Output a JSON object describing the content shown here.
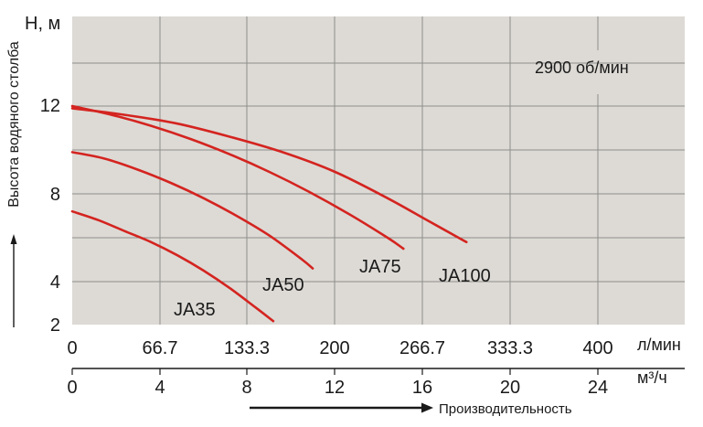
{
  "chart_data": {
    "type": "line",
    "ylabel": "Высота водяного столба",
    "y_axis_title": "H, м",
    "annotation": "2900 об/мин",
    "xlabel": "Производительность",
    "primary_x_unit": "л/мин",
    "secondary_x_unit": "м³/ч",
    "primary_x_ticks": [
      0,
      66.7,
      133.3,
      200,
      266.7,
      333.3,
      400
    ],
    "primary_x_tick_labels": [
      "0",
      "66.7",
      "133.3",
      "200",
      "266.7",
      "333.3",
      "400"
    ],
    "secondary_x_ticks": [
      0,
      4,
      8,
      12,
      16,
      20,
      24
    ],
    "secondary_x_tick_labels": [
      "0",
      "4",
      "8",
      "12",
      "16",
      "20",
      "24"
    ],
    "y_ticks": [
      2,
      4,
      8,
      12
    ],
    "y_tick_labels": [
      "2",
      "4",
      "8",
      "12"
    ],
    "xlim": [
      0,
      480
    ],
    "ylim": [
      2,
      16
    ],
    "grid": true,
    "line_color": "#d42420",
    "background_color": "#dddad5",
    "series": [
      {
        "name": "JA35",
        "x": [
          0,
          20,
          40,
          60,
          80,
          100,
          120,
          140,
          153
        ],
        "y": [
          7.2,
          6.8,
          6.3,
          5.8,
          5.2,
          4.5,
          3.7,
          2.8,
          2.2
        ]
      },
      {
        "name": "JA50",
        "x": [
          0,
          25,
          50,
          75,
          100,
          125,
          150,
          175,
          183
        ],
        "y": [
          9.9,
          9.6,
          9.1,
          8.5,
          7.8,
          7.0,
          6.1,
          5.0,
          4.6
        ]
      },
      {
        "name": "JA75",
        "x": [
          0,
          30,
          60,
          90,
          120,
          150,
          180,
          210,
          240,
          252
        ],
        "y": [
          12.0,
          11.6,
          11.1,
          10.5,
          9.8,
          9.0,
          8.1,
          7.1,
          6.0,
          5.5
        ]
      },
      {
        "name": "JA100",
        "x": [
          0,
          40,
          80,
          120,
          160,
          200,
          240,
          270,
          300
        ],
        "y": [
          11.9,
          11.6,
          11.2,
          10.6,
          9.9,
          9.0,
          7.8,
          6.8,
          5.8
        ]
      }
    ]
  }
}
